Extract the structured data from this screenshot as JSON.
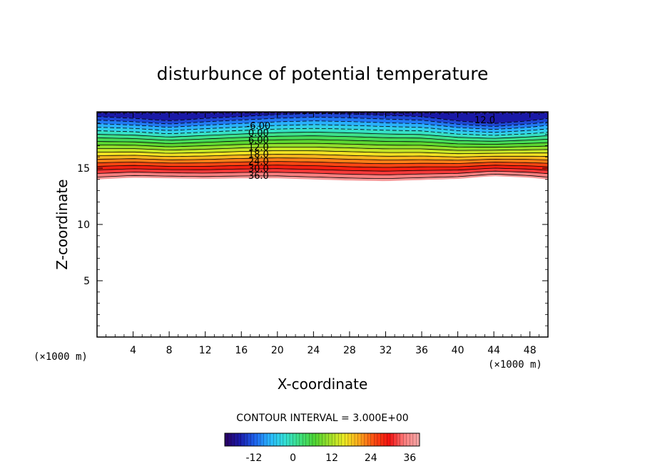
{
  "chart_data": {
    "type": "contour",
    "title": "disturbunce of potential temperature",
    "xlabel": "X-coordinate",
    "ylabel": "Z-coordinate",
    "x_unit": "(×1000 m)",
    "y_unit": "(×1000 m)",
    "xlim": [
      0,
      50
    ],
    "ylim": [
      0,
      20
    ],
    "x_ticks": [
      4,
      8,
      12,
      16,
      20,
      24,
      28,
      32,
      36,
      40,
      44,
      48
    ],
    "y_ticks": [
      5,
      10,
      15
    ],
    "contour_interval": 3.0,
    "contour_interval_text": "CONTOUR INTERVAL = 3.000E+00",
    "contour_labels": [
      "12.0",
      "-6.00",
      "0.00",
      "6.00",
      "12.0",
      "18.0",
      "24.0",
      "30.0",
      "36.0"
    ],
    "field": {
      "levels_min": -21,
      "levels_max": 39,
      "top_value": -18,
      "top_z": 19.9,
      "bottom_value": 38,
      "x": [
        0,
        4,
        8,
        12,
        16,
        20,
        24,
        28,
        32,
        36,
        40,
        44,
        48,
        50
      ],
      "bottom_edge_z": [
        14.0,
        14.15,
        14.1,
        14.05,
        14.1,
        14.1,
        14.0,
        13.9,
        13.85,
        13.95,
        14.05,
        14.3,
        14.15,
        14.0
      ],
      "band_width_factor": [
        1.0,
        0.97,
        0.93,
        0.97,
        1.0,
        1.03,
        1.05,
        1.04,
        1.02,
        1.0,
        0.93,
        0.88,
        0.93,
        0.97
      ]
    },
    "colorbar": {
      "tick_labels": [
        "-12",
        "0",
        "12",
        "24",
        "36"
      ],
      "tick_values": [
        -12,
        0,
        12,
        24,
        36
      ],
      "range": [
        -21,
        39
      ]
    },
    "colors": {
      "colormap": [
        "#2a0060",
        "#1a1aa8",
        "#1e62ee",
        "#29b6ff",
        "#33e0d8",
        "#3ee080",
        "#4ed433",
        "#9fe02a",
        "#eeea24",
        "#ffa51c",
        "#ff4a12",
        "#f21010",
        "#ff7f7f",
        "#f3a8a8"
      ],
      "frame": "#000000",
      "background": "#ffffff"
    }
  }
}
